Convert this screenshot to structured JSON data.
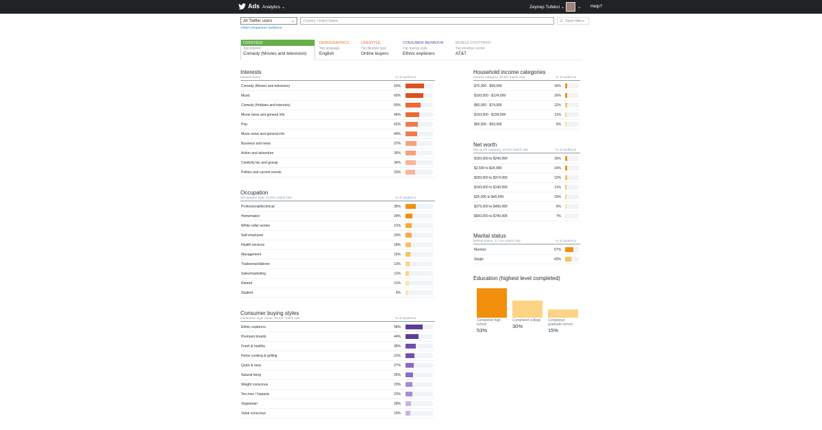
{
  "nav": {
    "brand": "Ads",
    "analytics": "Analytics",
    "user": "Zeynep Tufekci",
    "help": "Help?",
    "caret": "⌄"
  },
  "filters": {
    "audience": "All Twitter users",
    "country": "Country: United States",
    "open": "Open filters",
    "add": "+Add comparison audience"
  },
  "tabs": [
    {
      "name": "OVERVIEW",
      "sub": "Top interest",
      "val": "Comedy (Movies and television)",
      "color": "#ffffff"
    },
    {
      "name": "DEMOGRAPHICS",
      "sub": "Top language",
      "val": "English",
      "color": "#e86f12"
    },
    {
      "name": "LIFESTYLE",
      "sub": "Top lifestyle type",
      "val": "Online buyers",
      "color": "#e0531f"
    },
    {
      "name": "CONSUMER BEHAVIOR",
      "sub": "Top buying style",
      "val": "Ethnic explorers",
      "color": "#5c3d95"
    },
    {
      "name": "MOBILE FOOTPRINT",
      "sub": "Top wireless carrier",
      "val": "AT&T",
      "color": "#8899a6"
    }
  ],
  "interests": {
    "title": "Interests",
    "col1": "Interest name",
    "col2": "% of audience",
    "rows": [
      {
        "l": "Comedy (Movies and television)",
        "p": "63%",
        "v": 63,
        "c": "#d9531e"
      },
      {
        "l": "Music",
        "p": "60%",
        "v": 60,
        "c": "#d9531e"
      },
      {
        "l": "Comedy (Hobbies and interests)",
        "p": "50%",
        "v": 50,
        "c": "#ec6a33"
      },
      {
        "l": "Movie news and general info",
        "p": "46%",
        "v": 46,
        "c": "#ec6a33"
      },
      {
        "l": "Pop",
        "p": "42%",
        "v": 42,
        "c": "#f07c4a"
      },
      {
        "l": "Music news and general info",
        "p": "40%",
        "v": 40,
        "c": "#f07c4a"
      },
      {
        "l": "Business and news",
        "p": "37%",
        "v": 37,
        "c": "#f5a17e"
      },
      {
        "l": "Action and adventure",
        "p": "35%",
        "v": 35,
        "c": "#f5a17e"
      },
      {
        "l": "Celebrity fan and gossip",
        "p": "34%",
        "v": 34,
        "c": "#f8b59a"
      },
      {
        "l": "Politics and current events",
        "p": "33%",
        "v": 33,
        "c": "#f8b59a"
      }
    ]
  },
  "occupation": {
    "title": "Occupation",
    "col1": "Occupation type, 12.8% match rate",
    "col2": "% of audience",
    "rows": [
      {
        "l": "Professional/technical",
        "p": "35%",
        "v": 35,
        "c": "#f28f0d"
      },
      {
        "l": "Homemaker",
        "p": "24%",
        "v": 24,
        "c": "#f28f0d"
      },
      {
        "l": "White collar worker",
        "p": "21%",
        "v": 21,
        "c": "#f7a93a"
      },
      {
        "l": "Self-employed",
        "p": "20%",
        "v": 20,
        "c": "#f7a93a"
      },
      {
        "l": "Health services",
        "p": "18%",
        "v": 18,
        "c": "#fbc15c"
      },
      {
        "l": "Management",
        "p": "16%",
        "v": 16,
        "c": "#fbc15c"
      },
      {
        "l": "Tradesman/laborer",
        "p": "13%",
        "v": 13,
        "c": "#fdd384"
      },
      {
        "l": "Sales/marketing",
        "p": "11%",
        "v": 11,
        "c": "#fdd384"
      },
      {
        "l": "Retired",
        "p": "11%",
        "v": 11,
        "c": "#fde3b0"
      },
      {
        "l": "Student",
        "p": "9%",
        "v": 9,
        "c": "#fde3b0"
      }
    ]
  },
  "buying": {
    "title": "Consumer buying styles",
    "col1": "Consumer style name, 20.5% match rate",
    "col2": "% of audience",
    "rows": [
      {
        "l": "Ethnic explorers",
        "p": "58%",
        "v": 58,
        "c": "#5c3d95"
      },
      {
        "l": "Premium brands",
        "p": "44%",
        "v": 44,
        "c": "#5c3d95"
      },
      {
        "l": "Fresh & healthy",
        "p": "36%",
        "v": 36,
        "c": "#6e4fae"
      },
      {
        "l": "Home cooking & grilling",
        "p": "31%",
        "v": 31,
        "c": "#6e4fae"
      },
      {
        "l": "Quick & easy",
        "p": "27%",
        "v": 27,
        "c": "#8a6cc4"
      },
      {
        "l": "Natural living",
        "p": "25%",
        "v": 25,
        "c": "#8a6cc4"
      },
      {
        "l": "Weight conscious",
        "p": "23%",
        "v": 23,
        "c": "#a58cd6"
      },
      {
        "l": "Tex-mex / hispanic",
        "p": "23%",
        "v": 23,
        "c": "#a58cd6"
      },
      {
        "l": "Vegetarian",
        "p": "18%",
        "v": 18,
        "c": "#c5b3e8"
      },
      {
        "l": "Value conscious",
        "p": "16%",
        "v": 16,
        "c": "#c5b3e8"
      }
    ]
  },
  "income": {
    "title": "Household income categories",
    "col1": "Income category, 29.5% match rate",
    "col2": "% of audience",
    "rows": [
      {
        "l": "$75,000 - $99,999",
        "p": "16%",
        "v": 16,
        "c": "#f28f0d"
      },
      {
        "l": "$100,000 - $124,999",
        "p": "16%",
        "v": 16,
        "c": "#f28f0d"
      },
      {
        "l": "$60,000 - $74,999",
        "p": "12%",
        "v": 12,
        "c": "#fbc15c"
      },
      {
        "l": "$150,000 - $199,999",
        "p": "11%",
        "v": 11,
        "c": "#fdd384"
      },
      {
        "l": "$50,000 - $59,999",
        "p": "9%",
        "v": 9,
        "c": "#fde3b0"
      }
    ]
  },
  "networth": {
    "title": "Net worth",
    "col1": "Net worth category, 24.6% match rate",
    "col2": "% of audience",
    "rows": [
      {
        "l": "$150,000 to $249,999",
        "p": "16%",
        "v": 16,
        "c": "#f28f0d"
      },
      {
        "l": "$2,500 to $24,999",
        "p": "14%",
        "v": 14,
        "c": "#f28f0d"
      },
      {
        "l": "$250,000 to $374,999",
        "p": "12%",
        "v": 12,
        "c": "#fbc15c"
      },
      {
        "l": "$100,000 to $149,999",
        "p": "11%",
        "v": 11,
        "c": "#fbc15c"
      },
      {
        "l": "$25,000 to $49,999",
        "p": "10%",
        "v": 10,
        "c": "#fdd384"
      },
      {
        "l": "$375,000 to $499,999",
        "p": "9%",
        "v": 9,
        "c": "#fde3b0"
      },
      {
        "l": "$500,000 to $749,999",
        "p": "7%",
        "v": 7,
        "c": "#fde3b0"
      }
    ]
  },
  "marital": {
    "title": "Marital status",
    "col1": "Marital status, 17.1% match rate",
    "col2": "% of audience",
    "rows": [
      {
        "l": "Married",
        "p": "57%",
        "v": 57,
        "c": "#f28f0d"
      },
      {
        "l": "Single",
        "p": "43%",
        "v": 43,
        "c": "#fbc15c"
      }
    ]
  },
  "education": {
    "title": "Education (highest level completed)",
    "items": [
      {
        "l1": "Completed high",
        "l2": "school",
        "p": "53%",
        "v": 53,
        "c": "#f28f0d"
      },
      {
        "l1": "Completed college",
        "l2": "",
        "p": "30%",
        "v": 30,
        "c": "#fdd384"
      },
      {
        "l1": "Completed",
        "l2": "graduate school",
        "p": "15%",
        "v": 15,
        "c": "#fdd384"
      }
    ]
  }
}
